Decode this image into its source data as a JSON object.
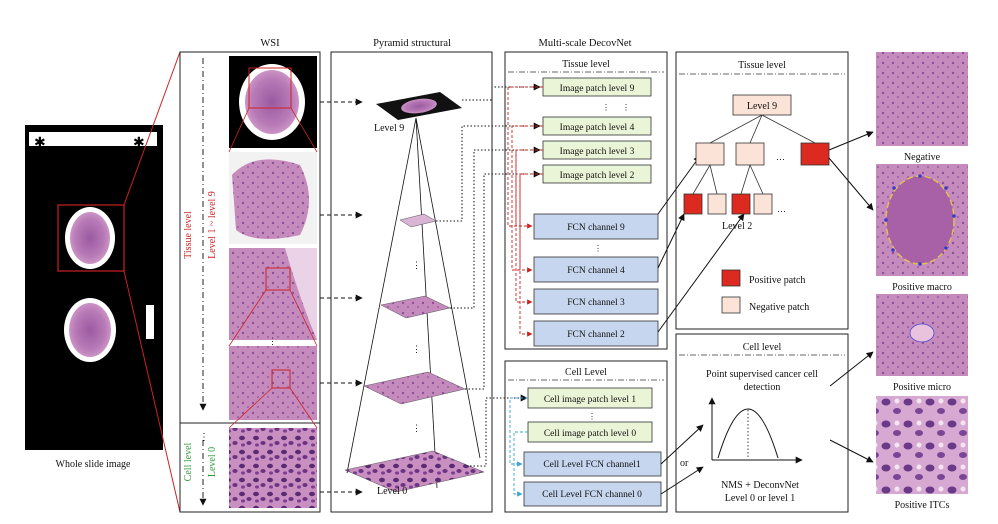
{
  "wsi_panel": {
    "caption": "Whole slide image"
  },
  "headers": {
    "wsi": "WSI",
    "pyramid": "Pyramid structural",
    "decovnet": "Multi-scale DecovNet"
  },
  "left_axis": {
    "tissue_level": "Tissue level",
    "tissue_range": "Level 1 ~ level 9",
    "cell_level": "Cell level",
    "cell_range": "Level 0",
    "ellipsis": "⋮"
  },
  "pyramid": {
    "top_label": "Level 9",
    "bottom_label": "Level 0",
    "ellipsis": "⋮"
  },
  "tissue_box": {
    "title": "Tissue level",
    "patches": [
      "Image patch level 9",
      "Image patch level 4",
      "Image patch level 3",
      "Image patch level 2"
    ],
    "channels": [
      "FCN channel 9",
      "FCN channel 4",
      "FCN channel 3",
      "FCN channel 2"
    ],
    "ellipsis": "⋮"
  },
  "cell_box": {
    "title": "Cell Level",
    "patches": [
      "Cell image patch level 1",
      "Cell image patch level 0"
    ],
    "channels": [
      "Cell Level FCN channel1",
      "Cell Level FCN channel 0"
    ],
    "or_label": "or",
    "ellipsis": "⋮"
  },
  "tree_box": {
    "title": "Tissue level",
    "root": "Level 9",
    "bottom": "Level 2",
    "dots": "…",
    "legend_positive": "Positive patch",
    "legend_negative": "Negative patch",
    "positive_color": "#dd2a20",
    "negative_color": "#fbe3d8"
  },
  "cell_detect_box": {
    "title": "Cell level",
    "subtitle_line1": "Point supervised cancer cell",
    "subtitle_line2": "detection",
    "nms_line1": "NMS + DeconvNet",
    "nms_line2": "Level 0 or level 1"
  },
  "outputs": [
    "Negative",
    "Positive macro",
    "Positive micro",
    "Positive ITCs"
  ],
  "colors": {
    "patch_fill": "#eaf4d7",
    "channel_fill": "#c7d6ef",
    "tissue_pink": "#b16aa8",
    "red_line": "#cc2222",
    "blue_line": "#3aa3dd"
  }
}
